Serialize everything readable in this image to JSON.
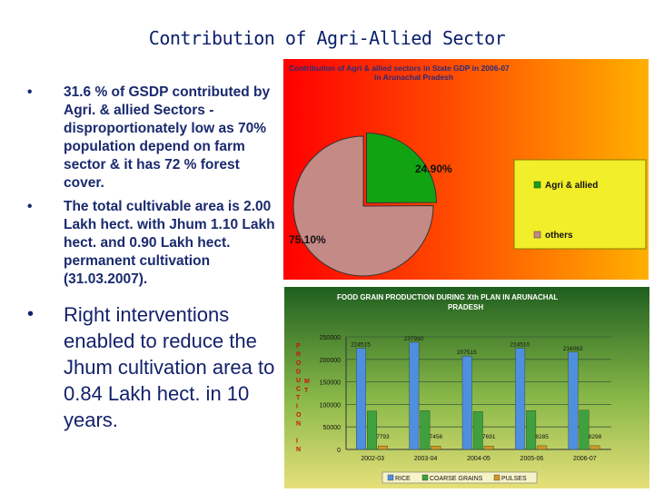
{
  "slide": {
    "title": "Contribution of Agri-Allied Sector",
    "bullets": [
      "31.6 % of GSDP contributed by Agri. & allied Sectors - disproportionately low as 70% population depend on farm sector & it has 72 % forest cover.",
      "The total cultivable area is 2.00 Lakh hect. with Jhum 1.10 Lakh hect. and 0.90 Lakh hect. permanent cultivation (31.03.2007).",
      "Right interventions enabled to reduce the Jhum cultivation area to 0.84 Lakh hect. in 10 years."
    ],
    "bullet_symbol": "•"
  },
  "chart_data": [
    {
      "type": "pie",
      "title_line1": "Contribution  of  Agri  &  allied sectors  in  State GDP  in  2006-07",
      "title_line2": "in Arunachal  Pradesh",
      "labels": [
        "Agri & allied",
        "others"
      ],
      "values": [
        24.9,
        75.1
      ],
      "value_labels": [
        "24.90%",
        "75.10%"
      ],
      "colors": [
        "#12a312",
        "#c48a86"
      ],
      "legend_position": "right"
    },
    {
      "type": "bar",
      "title_line1": "FOOD GRAIN PRODUCTION DURING Xth PLAN IN ARUNACHAL",
      "title_line2": "PRADESH",
      "ylabel_letters": [
        "P",
        "R",
        "O",
        "D",
        "U",
        "C",
        "T",
        "I",
        "O",
        "N",
        "",
        "I",
        "N"
      ],
      "unit_letters": [
        "M",
        "T"
      ],
      "categories": [
        "2002-03",
        "2003-04",
        "2004-05",
        "2005-06",
        "2006-07"
      ],
      "series": [
        {
          "name": "RICE",
          "values": [
            224515,
            237930,
            207515,
            224510,
            216063
          ],
          "labels": [
            "224515",
            "237930",
            "207515",
            "224510",
            "216063"
          ],
          "color": "#4f8fe0"
        },
        {
          "name": "COARSE GRAINS",
          "values": [
            85000,
            86000,
            84000,
            86000,
            87000
          ],
          "labels": [
            "",
            "",
            "",
            "",
            ""
          ],
          "color": "#3ea13e"
        },
        {
          "name": "PULSES",
          "values": [
            7793,
            7456,
            7691,
            8285,
            8298
          ],
          "labels": [
            "7793",
            "7456",
            "7691",
            "8285",
            "8298"
          ],
          "color": "#d09820"
        }
      ],
      "ylim": [
        0,
        250000
      ],
      "yticks": [
        0,
        50000,
        100000,
        150000,
        200000,
        250000
      ],
      "ytick_labels": [
        "0",
        "50000",
        "100000",
        "150000",
        "200000",
        "250000"
      ],
      "legend_labels": [
        "RICE",
        "COARSE GRAINS",
        "PULSES"
      ],
      "grid": true
    }
  ]
}
